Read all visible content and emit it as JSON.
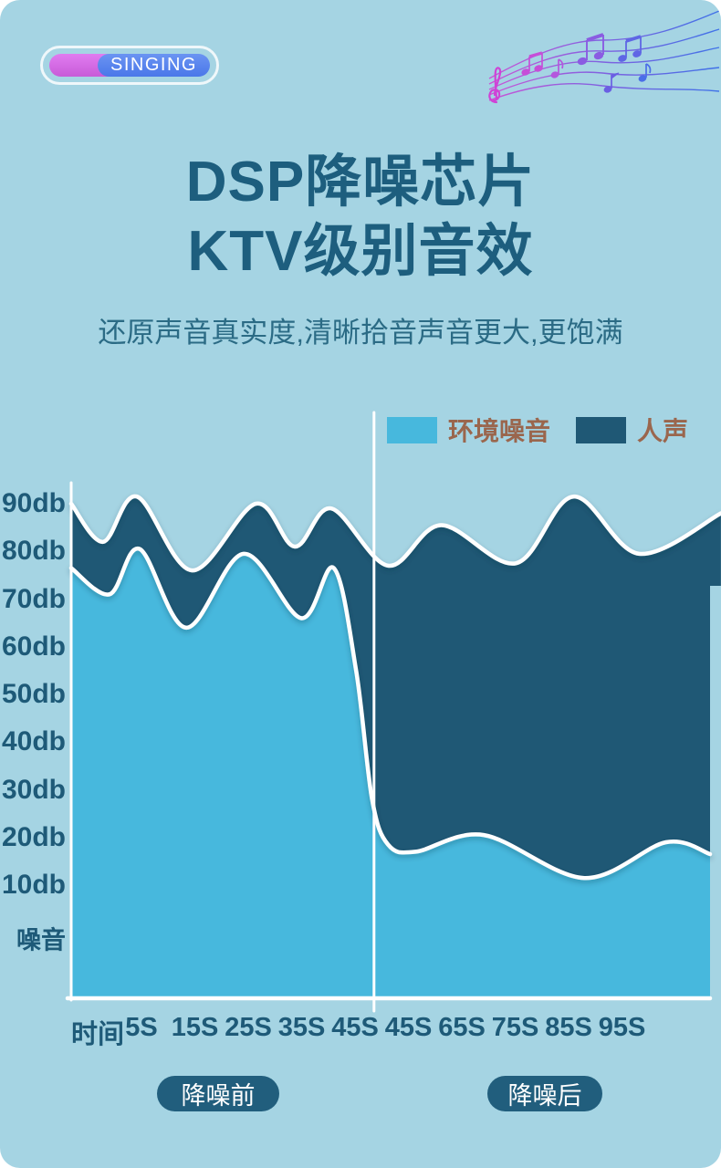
{
  "badge": {
    "label": "SINGING"
  },
  "title": {
    "line1": "DSP降噪芯片",
    "line2": "KTV级别音效"
  },
  "subtitle": "还原声音真实度,清晰拾音声音更大,更饱满",
  "colors": {
    "background": "#a5d4e3",
    "noise": "#47b8dd",
    "voice": "#1f5875",
    "axis_text": "#1e5a78",
    "legend_text": "#9a664d",
    "title_text": "#1d5e7e",
    "pill_bg": "#215e7d"
  },
  "legend": [
    {
      "label": "环境噪音",
      "color": "#47b8dd"
    },
    {
      "label": "人声",
      "color": "#1f5875"
    }
  ],
  "chart_data": {
    "type": "area",
    "title": "",
    "xlabel": "时间",
    "ylabel": "噪音",
    "grid": false,
    "legend_position": "top-right",
    "y_tick_labels": [
      "90db",
      "80db",
      "70db",
      "60db",
      "50db",
      "40db",
      "30db",
      "20db",
      "10db",
      "噪音"
    ],
    "x_tick_labels": [
      "时间",
      "5S",
      "15S",
      "25S",
      "35S",
      "45S",
      "45S",
      "65S",
      "75S",
      "85S",
      "95S"
    ],
    "y_unit": "db",
    "ylim": [
      0,
      95
    ],
    "divider_x_fraction": 0.474,
    "series": [
      {
        "name": "人声",
        "color": "#1f5875",
        "points": [
          [
            0,
            90
          ],
          [
            0.05,
            82
          ],
          [
            0.103,
            91.5
          ],
          [
            0.189,
            76
          ],
          [
            0.289,
            90
          ],
          [
            0.35,
            81
          ],
          [
            0.407,
            89
          ],
          [
            0.496,
            77
          ],
          [
            0.579,
            85.5
          ],
          [
            0.696,
            77.5
          ],
          [
            0.786,
            91.5
          ],
          [
            0.889,
            79.5
          ],
          [
            1.017,
            88
          ]
        ]
      },
      {
        "name": "环境噪音",
        "color": "#47b8dd",
        "points": [
          [
            0,
            76.5
          ],
          [
            0.06,
            71
          ],
          [
            0.107,
            80.5
          ],
          [
            0.18,
            64
          ],
          [
            0.27,
            79.5
          ],
          [
            0.36,
            66
          ],
          [
            0.411,
            76.5
          ],
          [
            0.446,
            55
          ],
          [
            0.471,
            28
          ],
          [
            0.496,
            18.5
          ],
          [
            0.539,
            17
          ],
          [
            0.646,
            20.5
          ],
          [
            0.803,
            11.5
          ],
          [
            0.931,
            19
          ],
          [
            1.0,
            16.5
          ]
        ]
      }
    ],
    "annotations": [
      "降噪前",
      "降噪后"
    ]
  },
  "footer": {
    "before_label": "降噪前",
    "after_label": "降噪后"
  }
}
